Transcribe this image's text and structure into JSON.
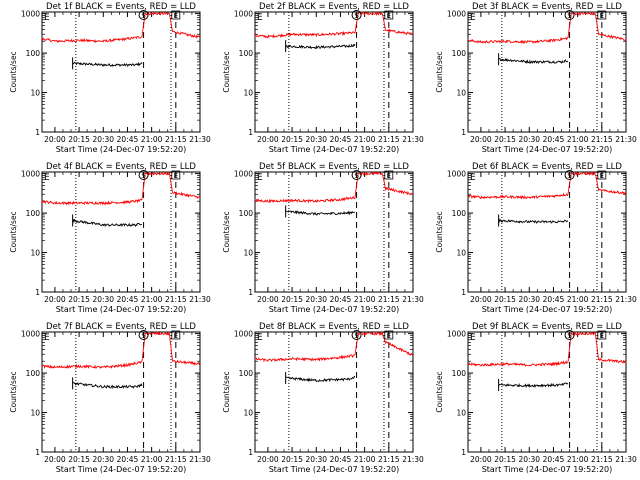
{
  "figure": {
    "background": "#ffffff",
    "colors": {
      "events": "#000000",
      "lld": "#ff0000",
      "axes": "#000000"
    },
    "shared": {
      "x_tick_labels": [
        "20:00",
        "20:15",
        "20:30",
        "20:45",
        "21:00",
        "21:15",
        "21:30"
      ],
      "x_ticks_min_after_20": [
        0,
        15,
        30,
        45,
        60,
        75,
        90
      ],
      "y_tick_labels": [
        "1",
        "10",
        "100",
        "1000"
      ],
      "ylabel": "Counts/sec",
      "xlabel": "Start Time (24-Dec-07 19:52:20)",
      "scale": "log-y",
      "x_range_min_after_20": [
        -8,
        90
      ],
      "y_range": [
        1,
        1100
      ],
      "markers": {
        "start": "E",
        "saa": "S",
        "exit": "E"
      }
    }
  },
  "chart_data": [
    {
      "type": "line",
      "title": "Det 1f BLACK = Events, RED = LLD",
      "xlabel": "Start Time (24-Dec-07 19:52:20)",
      "ylabel": "Counts/sec",
      "scale": "log-y",
      "x_range": [
        "19:52",
        "21:30"
      ],
      "ylim": [
        1,
        1100
      ],
      "dotted_lines": [
        "20:13",
        "21:12"
      ],
      "dashed_lines": [
        "20:55",
        "21:15"
      ],
      "series": [
        {
          "name": "BLACK = Events",
          "color": "#000000",
          "x": [
            "20:11",
            "20:30",
            "20:50",
            "20:54"
          ],
          "y": [
            55,
            50,
            50,
            55
          ]
        },
        {
          "name": "RED = LLD",
          "color": "#ff0000",
          "x": [
            "19:52",
            "20:00",
            "20:15",
            "20:30",
            "20:45",
            "20:54",
            "20:56",
            "21:11",
            "21:13",
            "21:30"
          ],
          "y": [
            230,
            200,
            210,
            200,
            230,
            260,
            1000,
            1000,
            350,
            250
          ]
        }
      ]
    },
    {
      "type": "line",
      "title": "Det 2f BLACK = Events, RED = LLD",
      "xlabel": "Start Time (24-Dec-07 19:52:20)",
      "ylabel": "Counts/sec",
      "scale": "log-y",
      "x_range": [
        "19:52",
        "21:30"
      ],
      "ylim": [
        1,
        1100
      ],
      "dotted_lines": [
        "20:13",
        "21:12"
      ],
      "dashed_lines": [
        "20:55",
        "21:15"
      ],
      "series": [
        {
          "name": "BLACK = Events",
          "color": "#000000",
          "x": [
            "20:11",
            "20:30",
            "20:50",
            "20:54"
          ],
          "y": [
            150,
            140,
            150,
            160
          ]
        },
        {
          "name": "RED = LLD",
          "color": "#ff0000",
          "x": [
            "19:52",
            "20:00",
            "20:15",
            "20:30",
            "20:45",
            "20:54",
            "20:56",
            "21:11",
            "21:13",
            "21:30"
          ],
          "y": [
            280,
            260,
            300,
            290,
            310,
            330,
            1000,
            1000,
            380,
            300
          ]
        }
      ]
    },
    {
      "type": "line",
      "title": "Det 3f BLACK = Events, RED = LLD",
      "xlabel": "Start Time (24-Dec-07 19:52:20)",
      "ylabel": "Counts/sec",
      "scale": "log-y",
      "x_range": [
        "19:52",
        "21:30"
      ],
      "ylim": [
        1,
        1100
      ],
      "dotted_lines": [
        "20:13",
        "21:12"
      ],
      "dashed_lines": [
        "20:55",
        "21:15"
      ],
      "series": [
        {
          "name": "BLACK = Events",
          "color": "#000000",
          "x": [
            "20:11",
            "20:30",
            "20:50",
            "20:54"
          ],
          "y": [
            70,
            60,
            60,
            65
          ]
        },
        {
          "name": "RED = LLD",
          "color": "#ff0000",
          "x": [
            "19:52",
            "20:00",
            "20:15",
            "20:30",
            "20:45",
            "20:54",
            "20:56",
            "21:11",
            "21:13",
            "21:30"
          ],
          "y": [
            210,
            190,
            200,
            190,
            210,
            240,
            1000,
            1000,
            300,
            220
          ]
        }
      ]
    },
    {
      "type": "line",
      "title": "Det 4f BLACK = Events, RED = LLD",
      "xlabel": "Start Time (24-Dec-07 19:52:20)",
      "ylabel": "Counts/sec",
      "scale": "log-y",
      "x_range": [
        "19:52",
        "21:30"
      ],
      "ylim": [
        1,
        1100
      ],
      "dotted_lines": [
        "20:13",
        "21:12"
      ],
      "dashed_lines": [
        "20:55",
        "21:15"
      ],
      "series": [
        {
          "name": "BLACK = Events",
          "color": "#000000",
          "x": [
            "20:11",
            "20:30",
            "20:50",
            "20:54"
          ],
          "y": [
            65,
            50,
            50,
            55
          ]
        },
        {
          "name": "RED = LLD",
          "color": "#ff0000",
          "x": [
            "19:52",
            "20:00",
            "20:15",
            "20:30",
            "20:45",
            "20:54",
            "20:56",
            "21:11",
            "21:13",
            "21:30"
          ],
          "y": [
            200,
            180,
            180,
            180,
            190,
            210,
            1000,
            1000,
            330,
            250
          ]
        }
      ]
    },
    {
      "type": "line",
      "title": "Det 5f BLACK = Events, RED = LLD",
      "xlabel": "Start Time (24-Dec-07 19:52:20)",
      "ylabel": "Counts/sec",
      "scale": "log-y",
      "x_range": [
        "19:52",
        "21:30"
      ],
      "ylim": [
        1,
        1100
      ],
      "dotted_lines": [
        "20:13",
        "21:12"
      ],
      "dashed_lines": [
        "20:55",
        "21:15"
      ],
      "series": [
        {
          "name": "BLACK = Events",
          "color": "#000000",
          "x": [
            "20:11",
            "20:30",
            "20:50",
            "20:54"
          ],
          "y": [
            110,
            95,
            100,
            110
          ]
        },
        {
          "name": "RED = LLD",
          "color": "#ff0000",
          "x": [
            "19:52",
            "20:00",
            "20:15",
            "20:30",
            "20:45",
            "20:54",
            "20:56",
            "21:11",
            "21:13",
            "21:30"
          ],
          "y": [
            210,
            200,
            210,
            200,
            220,
            250,
            1000,
            1000,
            420,
            300
          ]
        }
      ]
    },
    {
      "type": "line",
      "title": "Det 6f BLACK = Events, RED = LLD",
      "xlabel": "Start Time (24-Dec-07 19:52:20)",
      "ylabel": "Counts/sec",
      "scale": "log-y",
      "x_range": [
        "19:52",
        "21:30"
      ],
      "ylim": [
        1,
        1100
      ],
      "dotted_lines": [
        "20:13",
        "21:12"
      ],
      "dashed_lines": [
        "20:55",
        "21:15"
      ],
      "series": [
        {
          "name": "BLACK = Events",
          "color": "#000000",
          "x": [
            "20:11",
            "20:30",
            "20:50",
            "20:54"
          ],
          "y": [
            65,
            60,
            60,
            65
          ]
        },
        {
          "name": "RED = LLD",
          "color": "#ff0000",
          "x": [
            "19:52",
            "20:00",
            "20:15",
            "20:30",
            "20:45",
            "20:54",
            "20:56",
            "21:11",
            "21:13",
            "21:30"
          ],
          "y": [
            270,
            250,
            260,
            250,
            270,
            300,
            1000,
            1000,
            380,
            320
          ]
        }
      ]
    },
    {
      "type": "line",
      "title": "Det 7f BLACK = Events, RED = LLD",
      "xlabel": "Start Time (24-Dec-07 19:52:20)",
      "ylabel": "Counts/sec",
      "scale": "log-y",
      "x_range": [
        "19:52",
        "21:30"
      ],
      "ylim": [
        1,
        1100
      ],
      "dotted_lines": [
        "20:13",
        "21:12"
      ],
      "dashed_lines": [
        "20:55",
        "21:15"
      ],
      "series": [
        {
          "name": "BLACK = Events",
          "color": "#000000",
          "x": [
            "20:11",
            "20:30",
            "20:50",
            "20:54"
          ],
          "y": [
            55,
            45,
            45,
            50
          ]
        },
        {
          "name": "RED = LLD",
          "color": "#ff0000",
          "x": [
            "19:52",
            "20:00",
            "20:15",
            "20:30",
            "20:45",
            "20:54",
            "20:56",
            "21:11",
            "21:13",
            "21:30"
          ],
          "y": [
            150,
            140,
            150,
            140,
            160,
            190,
            1000,
            1000,
            200,
            170
          ]
        }
      ]
    },
    {
      "type": "line",
      "title": "Det 8f BLACK = Events, RED = LLD",
      "xlabel": "Start Time (24-Dec-07 19:52:20)",
      "ylabel": "Counts/sec",
      "scale": "log-y",
      "x_range": [
        "19:52",
        "21:30"
      ],
      "ylim": [
        1,
        1100
      ],
      "dotted_lines": [
        "20:13",
        "21:12"
      ],
      "dashed_lines": [
        "20:55",
        "21:15"
      ],
      "series": [
        {
          "name": "BLACK = Events",
          "color": "#000000",
          "x": [
            "20:11",
            "20:30",
            "20:50",
            "20:54"
          ],
          "y": [
            75,
            65,
            70,
            80
          ]
        },
        {
          "name": "RED = LLD",
          "color": "#ff0000",
          "x": [
            "19:52",
            "20:00",
            "20:15",
            "20:30",
            "20:45",
            "20:54",
            "20:56",
            "21:11",
            "21:13",
            "21:30"
          ],
          "y": [
            230,
            210,
            230,
            220,
            250,
            280,
            1000,
            1000,
            600,
            280
          ]
        }
      ]
    },
    {
      "type": "line",
      "title": "Det 9f BLACK = Events, RED = LLD",
      "xlabel": "Start Time (24-Dec-07 19:52:20)",
      "ylabel": "Counts/sec",
      "scale": "log-y",
      "x_range": [
        "19:52",
        "21:30"
      ],
      "ylim": [
        1,
        1100
      ],
      "dotted_lines": [
        "20:13",
        "21:12"
      ],
      "dashed_lines": [
        "20:55",
        "21:15"
      ],
      "series": [
        {
          "name": "BLACK = Events",
          "color": "#000000",
          "x": [
            "20:11",
            "20:30",
            "20:50",
            "20:54"
          ],
          "y": [
            50,
            48,
            50,
            55
          ]
        },
        {
          "name": "RED = LLD",
          "color": "#ff0000",
          "x": [
            "19:52",
            "20:00",
            "20:15",
            "20:30",
            "20:45",
            "20:54",
            "20:56",
            "21:11",
            "21:13",
            "21:30"
          ],
          "y": [
            170,
            160,
            170,
            160,
            170,
            190,
            1000,
            1000,
            220,
            190
          ]
        }
      ]
    }
  ]
}
